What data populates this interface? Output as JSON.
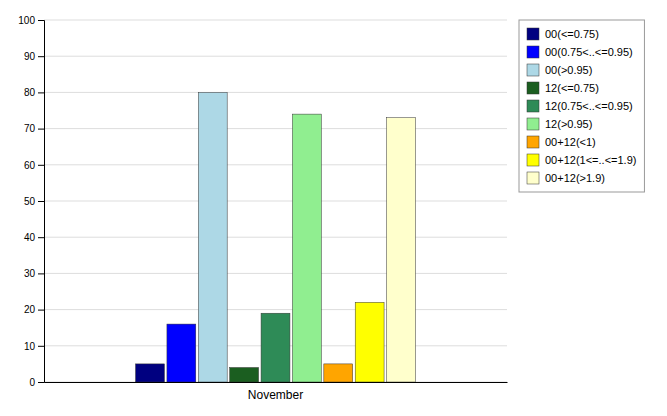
{
  "chart_data": {
    "type": "bar",
    "categories": [
      "November"
    ],
    "series": [
      {
        "name": "00(<=0.75)",
        "color": "#000080",
        "values": [
          5
        ]
      },
      {
        "name": "00(0.75<..<=0.95)",
        "color": "#0000FF",
        "values": [
          16
        ]
      },
      {
        "name": "00(>0.95)",
        "color": "#ADD8E6",
        "values": [
          80
        ]
      },
      {
        "name": "12(<=0.75)",
        "color": "#1B5E20",
        "values": [
          4
        ]
      },
      {
        "name": "12(0.75<..<=0.95)",
        "color": "#2E8B57",
        "values": [
          19
        ]
      },
      {
        "name": "12(>0.95)",
        "color": "#90EE90",
        "values": [
          74
        ]
      },
      {
        "name": "00+12(<1)",
        "color": "#FFA500",
        "values": [
          5
        ]
      },
      {
        "name": "00+12(1<=..<=1.9)",
        "color": "#FFFF00",
        "values": [
          22
        ]
      },
      {
        "name": "00+12(>1.9)",
        "color": "#FFFFCC",
        "values": [
          73
        ]
      }
    ],
    "ylim": [
      0,
      100
    ],
    "yticks": [
      0,
      10,
      20,
      30,
      40,
      50,
      60,
      70,
      80,
      90,
      100
    ],
    "grid": true,
    "legend": "right"
  }
}
